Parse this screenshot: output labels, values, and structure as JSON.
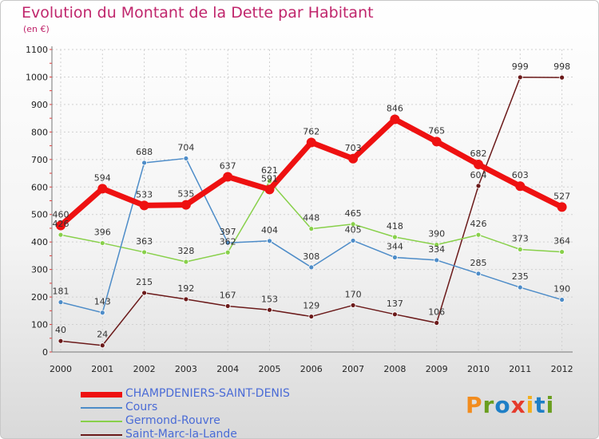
{
  "title": "Evolution du Montant de la Dette par Habitant",
  "subtitle": "(en €)",
  "logo": {
    "text": "Proxiti",
    "colors": [
      "#f28c1e",
      "#6a9e1f",
      "#1f7fc6",
      "#e53b2c",
      "#f2b01e",
      "#1f7fc6",
      "#6a9e1f"
    ]
  },
  "chart_data": {
    "type": "line",
    "x": [
      "2000",
      "2001",
      "2002",
      "2003",
      "2004",
      "2005",
      "2006",
      "2007",
      "2008",
      "2009",
      "2010",
      "2011",
      "2012"
    ],
    "ylim": [
      0,
      1100
    ],
    "yticks": [
      0,
      100,
      200,
      300,
      400,
      500,
      600,
      700,
      800,
      900,
      1000,
      1100
    ],
    "grid": true,
    "legend_position": "bottom-left",
    "series": [
      {
        "name": "CHAMPDENIERS-SAINT-DENIS",
        "color": "#ee1111",
        "values": [
          460,
          594,
          533,
          535,
          637,
          591,
          762,
          703,
          846,
          765,
          682,
          603,
          527
        ]
      },
      {
        "name": "Cours",
        "color": "#4d8cc8",
        "values": [
          181,
          143,
          688,
          704,
          397,
          404,
          308,
          405,
          344,
          334,
          285,
          235,
          190
        ]
      },
      {
        "name": "Germond-Rouvre",
        "color": "#88d04a",
        "values": [
          426,
          396,
          363,
          328,
          362,
          621,
          448,
          465,
          418,
          390,
          426,
          373,
          364
        ]
      },
      {
        "name": "Saint-Marc-la-Lande",
        "color": "#6b1a1a",
        "values": [
          40,
          24,
          215,
          192,
          167,
          153,
          129,
          170,
          137,
          106,
          604,
          999,
          998
        ]
      }
    ]
  }
}
